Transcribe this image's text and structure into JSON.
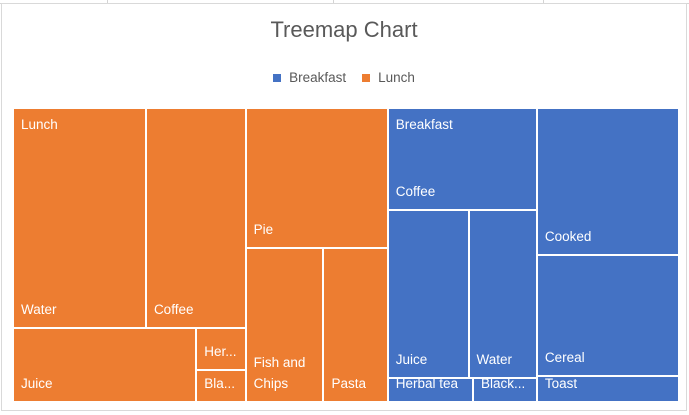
{
  "chart_data": {
    "type": "treemap",
    "title": "Treemap Chart",
    "legend": {
      "position": "top",
      "entries": [
        "Breakfast",
        "Lunch"
      ]
    },
    "colors": {
      "Breakfast": "#4472C4",
      "Lunch": "#ED7D31"
    },
    "note_values": "relative values estimated from tile areas; no values printed",
    "groups": [
      {
        "name": "Lunch",
        "items": [
          {
            "label": "Water",
            "value": 28
          },
          {
            "label": "Coffee",
            "value": 21
          },
          {
            "label": "Juice",
            "value": 13
          },
          {
            "label": "Her...",
            "value": 2
          },
          {
            "label": "Bla...",
            "value": 1.5
          },
          {
            "label": "Pie",
            "value": 19
          },
          {
            "label": "Fish and Chips",
            "value": 11.5
          },
          {
            "label": "Pasta",
            "value": 9.5
          }
        ]
      },
      {
        "name": "Breakfast",
        "items": [
          {
            "label": "Coffee",
            "value": 14.5
          },
          {
            "label": "Juice",
            "value": 13
          },
          {
            "label": "Water",
            "value": 11
          },
          {
            "label": "Herbal tea",
            "value": 2
          },
          {
            "label": "Black...",
            "value": 1.5
          },
          {
            "label": "Cooked",
            "value": 20
          },
          {
            "label": "Cereal",
            "value": 16.5
          },
          {
            "label": "Toast",
            "value": 3.5
          }
        ]
      }
    ]
  }
}
